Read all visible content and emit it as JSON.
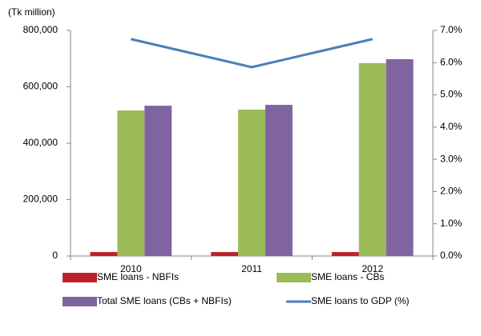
{
  "chart_data": {
    "type": "bar",
    "y_axis_label": "(Tk million)",
    "categories": [
      "2010",
      "2011",
      "2012"
    ],
    "series": [
      {
        "name": "SME loans - NBFIs",
        "color": "#c0202a",
        "values": [
          14000,
          14000,
          14000
        ]
      },
      {
        "name": "SME loans - CBs",
        "color": "#9bbb59",
        "values": [
          516000,
          519000,
          684000
        ]
      },
      {
        "name": "Total SME loans (CBs + NBFIs)",
        "color": "#8064a2",
        "values": [
          533000,
          536000,
          698000
        ]
      },
      {
        "name": "SME loans to GDP (%)",
        "color": "#4a7ebb",
        "type": "line",
        "axis": "y2",
        "values": [
          6.73,
          5.86,
          6.73
        ]
      }
    ],
    "ylim": [
      0,
      800000
    ],
    "yticks": [
      0,
      {
        "value": 200000,
        "label": "200,000"
      },
      {
        "value": 400000,
        "label": "400,000"
      },
      {
        "value": 600000,
        "label": "600,000"
      },
      {
        "value": 800000,
        "label": "800,000"
      }
    ],
    "y2lim": [
      0,
      7
    ],
    "y2ticks": [
      {
        "value": 0,
        "label": "0.0%"
      },
      {
        "value": 1,
        "label": "1.0%"
      },
      {
        "value": 2,
        "label": "2.0%"
      },
      {
        "value": 3,
        "label": "3.0%"
      },
      {
        "value": 4,
        "label": "4.0%"
      },
      {
        "value": 5,
        "label": "5.0%"
      },
      {
        "value": 6,
        "label": "6.0%"
      },
      {
        "value": 7,
        "label": "7.0%"
      }
    ],
    "grid": false,
    "legend": "bottom"
  }
}
